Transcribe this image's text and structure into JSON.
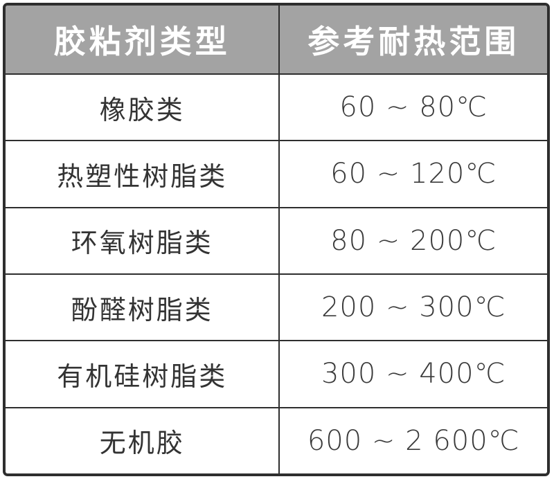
{
  "colors": {
    "header_background": "#a3a3a3",
    "header_text": "#ffffff",
    "border": "#2e2e2e",
    "body_text": "#333333",
    "page_background": "#ffffff"
  },
  "table": {
    "headers": [
      {
        "label": "胶粘剂类型"
      },
      {
        "label": "参考耐热范围"
      }
    ],
    "rows": [
      {
        "type": "橡胶类",
        "range": "60 ~ 80℃"
      },
      {
        "type": "热塑性树脂类",
        "range": "60 ~ 120℃"
      },
      {
        "type": "环氧树脂类",
        "range": "80 ~ 200℃"
      },
      {
        "type": "酚醛树脂类",
        "range": "200 ~ 300℃"
      },
      {
        "type": "有机硅树脂类",
        "range": "300 ~ 400℃"
      },
      {
        "type": "无机胶",
        "range": "600 ~ 2 600℃"
      }
    ]
  },
  "chart_data": {
    "type": "table",
    "columns": [
      "胶粘剂类型",
      "参考耐热范围"
    ],
    "rows": [
      [
        "橡胶类",
        "60 ~ 80℃"
      ],
      [
        "热塑性树脂类",
        "60 ~ 120℃"
      ],
      [
        "环氧树脂类",
        "80 ~ 200℃"
      ],
      [
        "酚醛树脂类",
        "200 ~ 300℃"
      ],
      [
        "有机硅树脂类",
        "300 ~ 400℃"
      ],
      [
        "无机胶",
        "600 ~ 2 600℃"
      ]
    ]
  }
}
